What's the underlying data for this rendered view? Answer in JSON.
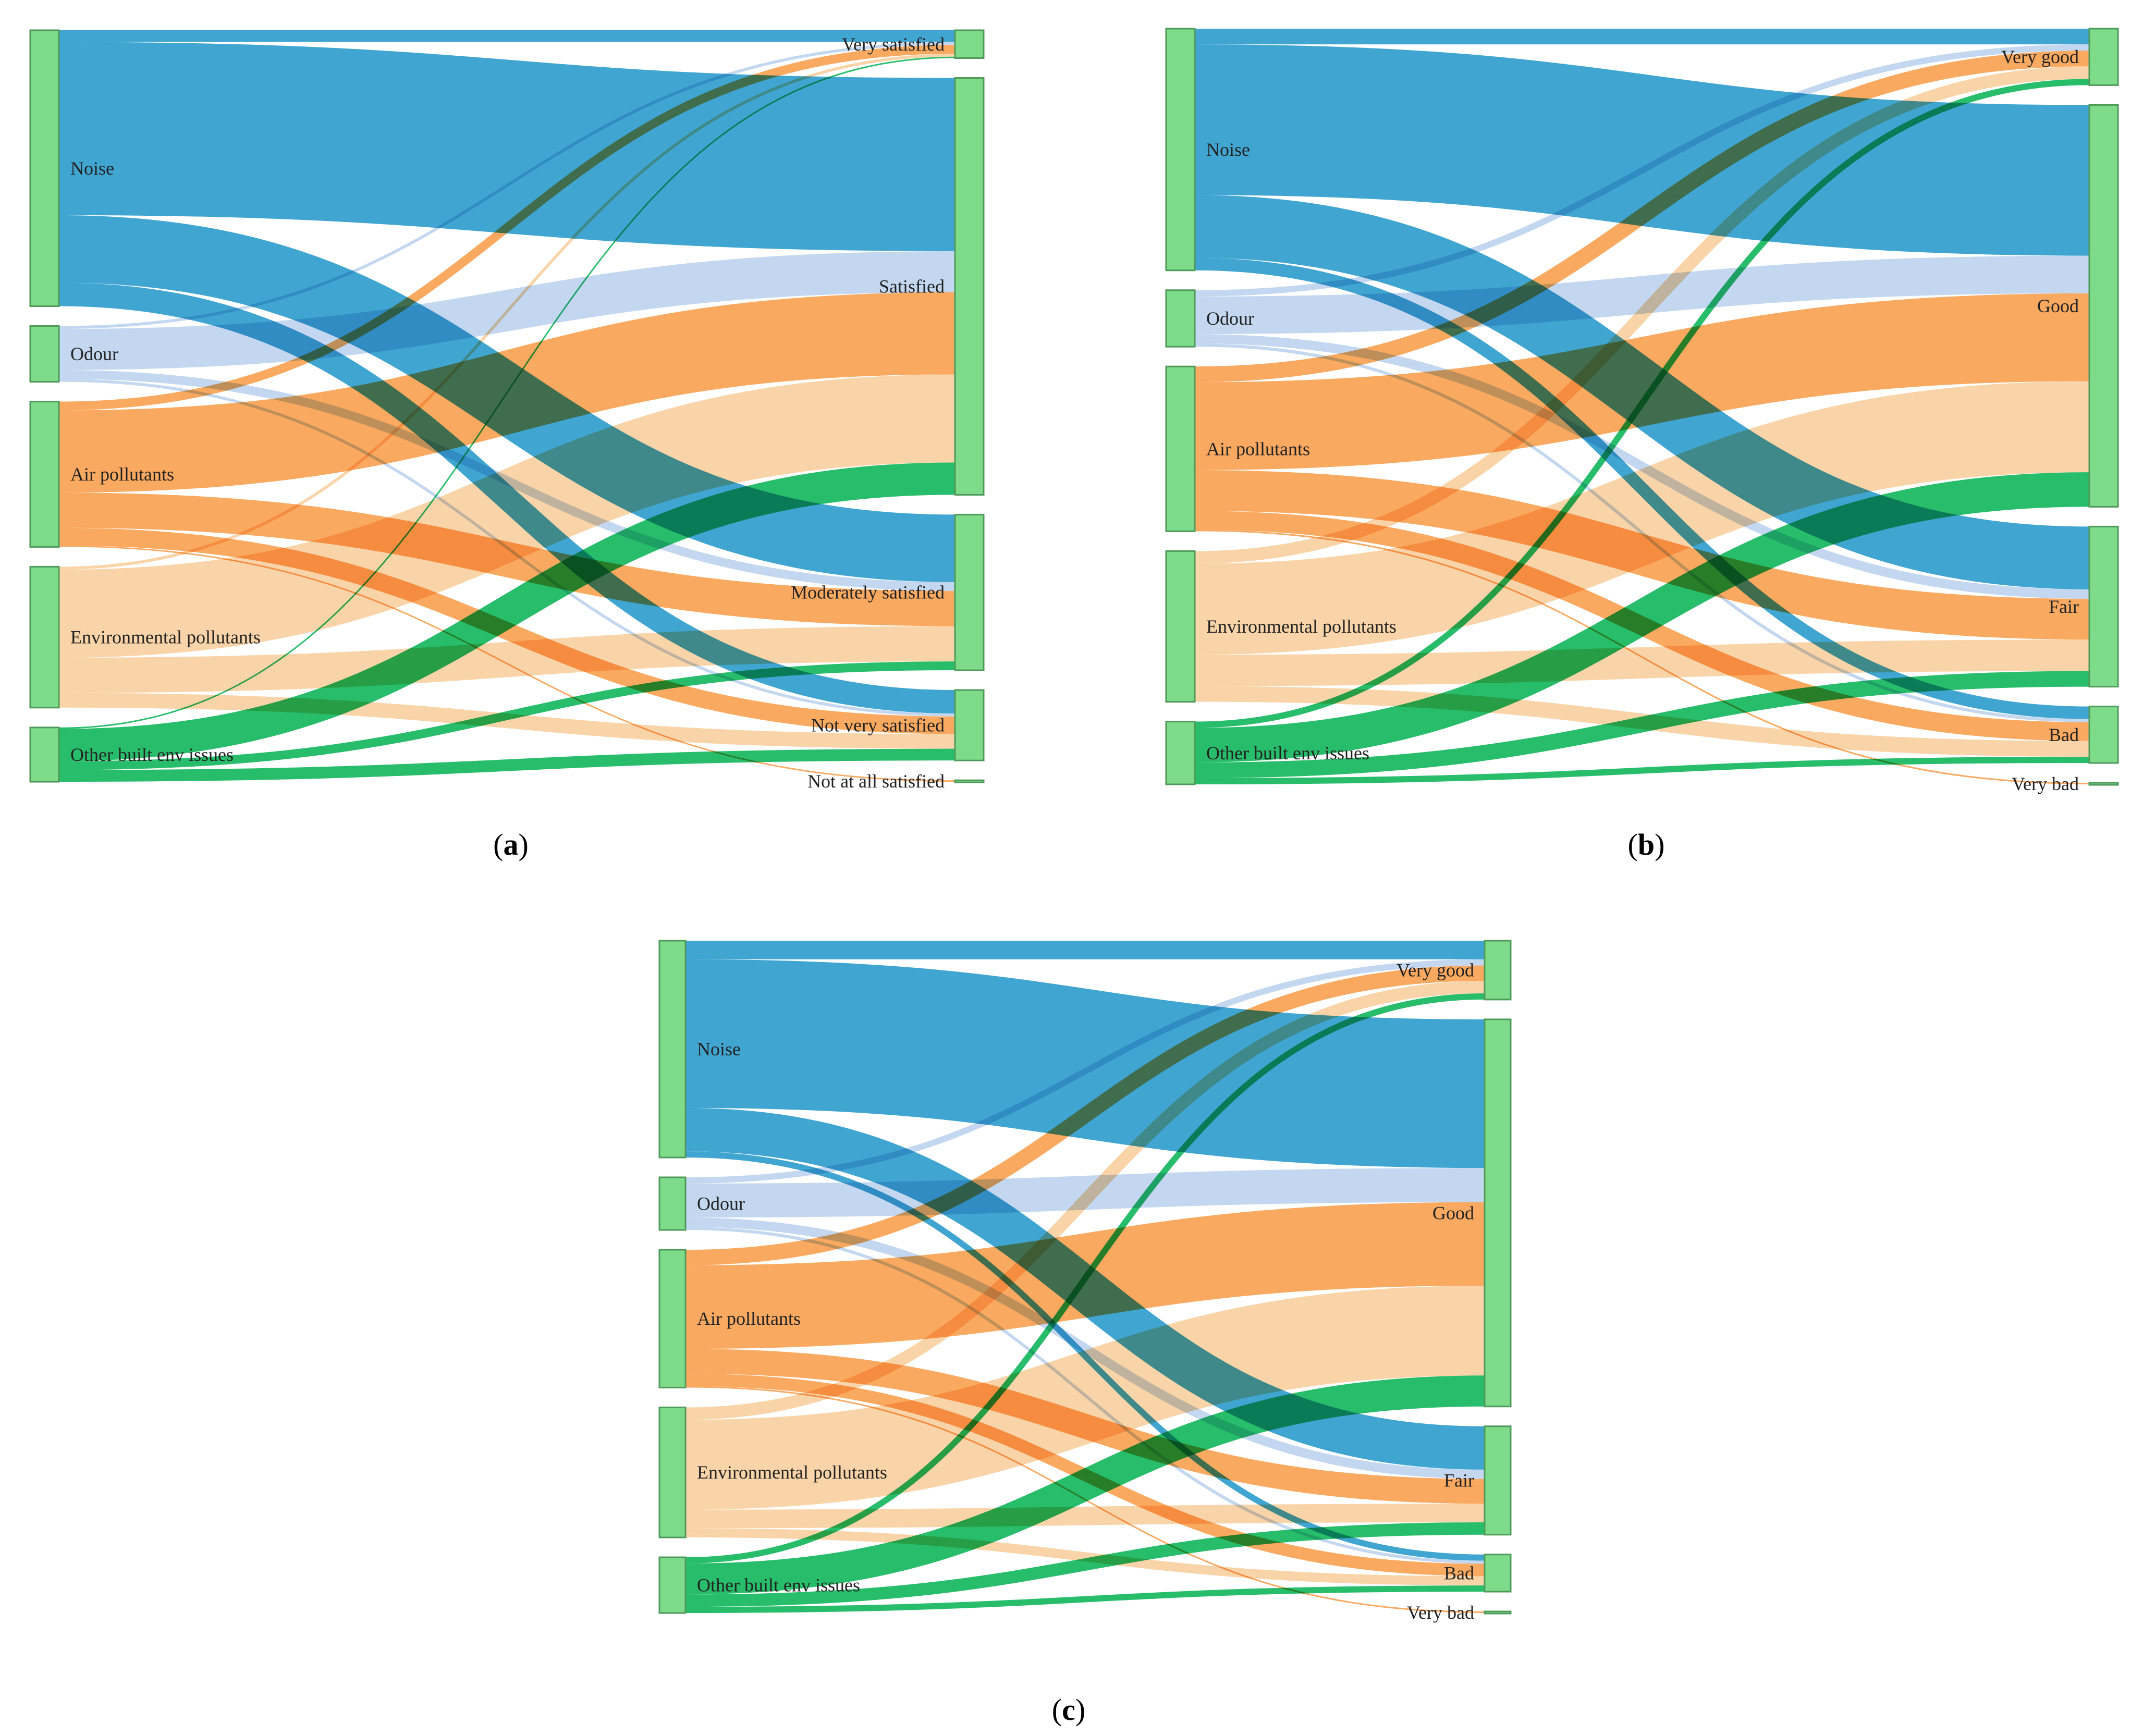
{
  "colors": {
    "Noise": "#2b9bcb",
    "Odour": "#bcd4ee",
    "Air pollutants": "#f9a04f",
    "Environmental pollutants": "#f9cfa0",
    "Other built env issues": "#0fb65a",
    "node": "#7ddb8a"
  },
  "panels": [
    {
      "caption_letter": "a",
      "sources": [
        "Noise",
        "Odour",
        "Air pollutants",
        "Environmental pollutants",
        "Other built env issues"
      ],
      "targets": [
        "Very satisfied",
        "Satisfied",
        "Moderately satisfied",
        "Not very satisfied",
        "Not at all satisfied"
      ],
      "flows": [
        [
          4,
          59,
          23,
          8,
          0
        ],
        [
          1,
          14,
          3,
          1,
          0
        ],
        [
          3,
          28,
          12,
          6,
          0.5
        ],
        [
          1,
          30,
          12,
          5,
          0
        ],
        [
          0.5,
          11,
          3,
          4,
          0
        ]
      ]
    },
    {
      "caption_letter": "b",
      "sources": [
        "Noise",
        "Odour",
        "Air pollutants",
        "Environmental pollutants",
        "Other built env issues"
      ],
      "targets": [
        "Very good",
        "Good",
        "Fair",
        "Bad",
        "Very bad"
      ],
      "flows": [
        [
          5,
          48,
          20,
          4,
          0
        ],
        [
          2,
          12,
          3,
          1,
          0
        ],
        [
          5,
          28,
          13,
          6,
          0.5
        ],
        [
          4,
          29,
          10,
          5,
          0
        ],
        [
          2,
          11,
          5,
          2,
          0
        ]
      ]
    },
    {
      "caption_letter": "c",
      "sources": [
        "Noise",
        "Odour",
        "Air pollutants",
        "Environmental pollutants",
        "Other built env issues"
      ],
      "targets": [
        "Very good",
        "Good",
        "Fair",
        "Bad",
        "Very bad"
      ],
      "flows": [
        [
          6,
          48,
          14,
          2,
          0
        ],
        [
          2,
          11,
          3,
          1,
          0
        ],
        [
          5,
          27,
          8,
          4,
          0.5
        ],
        [
          4,
          29,
          6,
          3,
          0
        ],
        [
          2,
          10,
          4,
          2,
          0
        ]
      ]
    }
  ]
}
